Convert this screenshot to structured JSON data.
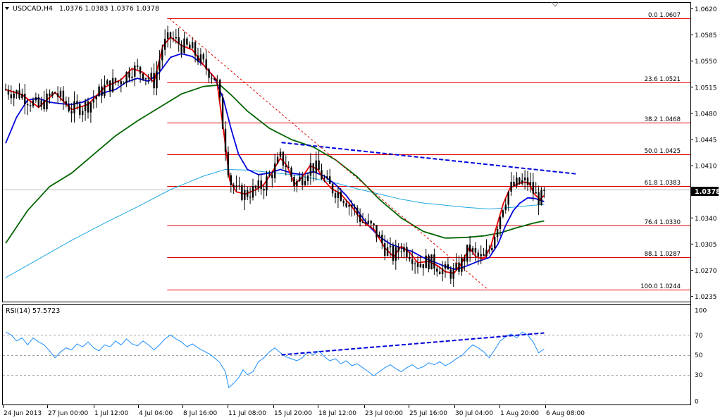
{
  "header": {
    "symbol": "USDCAD,H4",
    "ohlc": "1.0376 1.0383 1.0376 1.0378",
    "rsi_label": "RSI(14) 57.5723"
  },
  "price": {
    "current": "1.0378",
    "axis_ticks": [
      "1.0620",
      "1.0585",
      "1.0550",
      "1.0515",
      "1.0480",
      "1.0445",
      "1.0410",
      "1.0375",
      "1.0340",
      "1.0305",
      "1.0270",
      "1.0235"
    ]
  },
  "rsi_axis_ticks": [
    "100",
    "70",
    "50",
    "30",
    "0"
  ],
  "time_axis": [
    "24 Jun 2013",
    "27 Jun 00:00",
    "1 Jul 12:00",
    "4 Jul 04:00",
    "8 Jul 16:00",
    "11 Jul 08:00",
    "15 Jul 20:00",
    "18 Jul 12:00",
    "23 Jul 00:00",
    "25 Jul 16:00",
    "30 Jul 04:00",
    "1 Aug 20:00",
    "6 Aug 08:00"
  ],
  "colors": {
    "candle": "#000000",
    "ema_fast": "#ee0000",
    "ema_mid": "#0000dd",
    "ema_slow": "#006400",
    "ema_long": "#1ea7e0",
    "fib": "#e00000",
    "trendline": "#0000dd",
    "rsi": "#1e90ff"
  },
  "chart_data": [
    {
      "type": "candlestick",
      "symbol": "USDCAD",
      "timeframe": "H4",
      "ylim": [
        1.0228,
        1.0628
      ],
      "fibonacci": {
        "high": 1.0607,
        "low": 1.0244,
        "levels": [
          {
            "label": "0.0",
            "value": "1.0607"
          },
          {
            "label": "23.6",
            "value": "1.0521"
          },
          {
            "label": "38.2",
            "value": "1.0468"
          },
          {
            "label": "50.0",
            "value": "1.0425"
          },
          {
            "label": "61.8",
            "value": "1.0383"
          },
          {
            "label": "76.4",
            "value": "1.0330"
          },
          {
            "label": "88.1",
            "value": "1.0287"
          },
          {
            "label": "100.0",
            "value": "1.0244"
          }
        ]
      },
      "moving_averages": [
        {
          "color": "ema_fast",
          "points": [
            [
              0.0,
              1.0512
            ],
            [
              1.5,
              1.0505
            ],
            [
              3.0,
              1.0488
            ],
            [
              4.5,
              1.0508
            ],
            [
              6.0,
              1.0485
            ],
            [
              7.5,
              1.0492
            ],
            [
              9.0,
              1.0515
            ],
            [
              10.5,
              1.0525
            ],
            [
              11.5,
              1.054
            ],
            [
              12.5,
              1.0535
            ],
            [
              13.5,
              1.0522
            ],
            [
              14.3,
              1.057
            ],
            [
              15.0,
              1.0582
            ],
            [
              16.0,
              1.0571
            ],
            [
              17.0,
              1.0565
            ],
            [
              18.0,
              1.0545
            ],
            [
              19.2,
              1.0525
            ],
            [
              19.8,
              1.046
            ],
            [
              20.4,
              1.039
            ],
            [
              21.0,
              1.0375
            ],
            [
              21.8,
              1.0372
            ],
            [
              22.8,
              1.0378
            ],
            [
              23.5,
              1.0385
            ],
            [
              24.2,
              1.04
            ],
            [
              25.0,
              1.042
            ],
            [
              25.6,
              1.041
            ],
            [
              26.3,
              1.0385
            ],
            [
              27.0,
              1.0395
            ],
            [
              27.7,
              1.041
            ],
            [
              28.4,
              1.0405
            ],
            [
              29.0,
              1.039
            ],
            [
              29.6,
              1.038
            ],
            [
              30.5,
              1.0372
            ],
            [
              31.5,
              1.0355
            ],
            [
              32.5,
              1.0335
            ],
            [
              33.5,
              1.0325
            ],
            [
              34.5,
              1.03
            ],
            [
              35.3,
              1.0288
            ],
            [
              36.0,
              1.0302
            ],
            [
              36.8,
              1.0293
            ],
            [
              37.5,
              1.028
            ],
            [
              38.5,
              1.0282
            ],
            [
              39.3,
              1.0276
            ],
            [
              40.0,
              1.0268
            ],
            [
              40.8,
              1.0266
            ],
            [
              41.5,
              1.028
            ],
            [
              42.2,
              1.03
            ],
            [
              42.8,
              1.0288
            ],
            [
              43.5,
              1.0285
            ],
            [
              44.1,
              1.03
            ],
            [
              44.7,
              1.033
            ],
            [
              45.3,
              1.036
            ],
            [
              45.9,
              1.038
            ],
            [
              46.5,
              1.0385
            ],
            [
              47.1,
              1.0388
            ],
            [
              47.6,
              1.0387
            ],
            [
              48.1,
              1.0372
            ],
            [
              48.6,
              1.0365
            ],
            [
              49.0,
              1.037
            ]
          ]
        },
        {
          "color": "ema_mid",
          "points": [
            [
              0.0,
              1.044
            ],
            [
              1.0,
              1.0475
            ],
            [
              2.0,
              1.0498
            ],
            [
              3.0,
              1.05
            ],
            [
              4.0,
              1.0495
            ],
            [
              5.0,
              1.0493
            ],
            [
              6.0,
              1.0492
            ],
            [
              7.0,
              1.0495
            ],
            [
              8.0,
              1.0502
            ],
            [
              9.0,
              1.0508
            ],
            [
              10.0,
              1.0512
            ],
            [
              11.0,
              1.0522
            ],
            [
              12.0,
              1.0527
            ],
            [
              13.0,
              1.0523
            ],
            [
              14.0,
              1.0535
            ],
            [
              15.0,
              1.0555
            ],
            [
              16.0,
              1.056
            ],
            [
              17.0,
              1.0556
            ],
            [
              18.0,
              1.0545
            ],
            [
              19.0,
              1.0528
            ],
            [
              19.8,
              1.05
            ],
            [
              20.5,
              1.046
            ],
            [
              21.2,
              1.0425
            ],
            [
              22.0,
              1.0405
            ],
            [
              23.0,
              1.0398
            ],
            [
              24.0,
              1.04
            ],
            [
              25.0,
              1.0405
            ],
            [
              26.0,
              1.04
            ],
            [
              27.0,
              1.0398
            ],
            [
              28.0,
              1.0402
            ],
            [
              29.0,
              1.0396
            ],
            [
              30.0,
              1.0385
            ],
            [
              31.0,
              1.037
            ],
            [
              32.0,
              1.035
            ],
            [
              33.0,
              1.033
            ],
            [
              34.0,
              1.0315
            ],
            [
              35.0,
              1.0305
            ],
            [
              36.0,
              1.03
            ],
            [
              37.0,
              1.0295
            ],
            [
              38.0,
              1.0287
            ],
            [
              39.0,
              1.0281
            ],
            [
              40.0,
              1.0275
            ],
            [
              41.0,
              1.0271
            ],
            [
              42.0,
              1.0276
            ],
            [
              43.0,
              1.0282
            ],
            [
              44.0,
              1.0287
            ],
            [
              44.8,
              1.0305
            ],
            [
              45.5,
              1.033
            ],
            [
              46.2,
              1.035
            ],
            [
              46.8,
              1.036
            ],
            [
              47.5,
              1.0367
            ],
            [
              48.2,
              1.0366
            ],
            [
              49.0,
              1.0362
            ]
          ]
        },
        {
          "color": "ema_slow",
          "points": [
            [
              0.0,
              1.0306
            ],
            [
              2.0,
              1.035
            ],
            [
              4.0,
              1.0382
            ],
            [
              6.0,
              1.04
            ],
            [
              8.0,
              1.0425
            ],
            [
              10.0,
              1.045
            ],
            [
              12.0,
              1.047
            ],
            [
              14.0,
              1.0488
            ],
            [
              16.0,
              1.0506
            ],
            [
              18.0,
              1.0516
            ],
            [
              19.5,
              1.0518
            ],
            [
              20.5,
              1.0505
            ],
            [
              22.0,
              1.0483
            ],
            [
              24.0,
              1.046
            ],
            [
              26.0,
              1.0445
            ],
            [
              28.0,
              1.0435
            ],
            [
              30.0,
              1.0418
            ],
            [
              32.0,
              1.0395
            ],
            [
              34.0,
              1.0365
            ],
            [
              36.0,
              1.034
            ],
            [
              38.0,
              1.0322
            ],
            [
              40.0,
              1.0313
            ],
            [
              42.0,
              1.0314
            ],
            [
              43.5,
              1.0316
            ],
            [
              45.0,
              1.032
            ],
            [
              46.5,
              1.0327
            ],
            [
              48.0,
              1.0333
            ],
            [
              49.0,
              1.0336
            ]
          ]
        },
        {
          "color": "ema_long",
          "points": [
            [
              0.0,
              1.026
            ],
            [
              3.0,
              1.0285
            ],
            [
              6.0,
              1.031
            ],
            [
              9.0,
              1.0333
            ],
            [
              12.0,
              1.0355
            ],
            [
              15.0,
              1.0378
            ],
            [
              18.0,
              1.0396
            ],
            [
              20.0,
              1.0405
            ],
            [
              22.0,
              1.0404
            ],
            [
              24.0,
              1.0401
            ],
            [
              26.0,
              1.0398
            ],
            [
              28.0,
              1.0393
            ],
            [
              30.0,
              1.0387
            ],
            [
              32.0,
              1.0379
            ],
            [
              34.0,
              1.0372
            ],
            [
              36.0,
              1.0365
            ],
            [
              38.0,
              1.036
            ],
            [
              40.0,
              1.0357
            ],
            [
              42.0,
              1.0354
            ],
            [
              44.0,
              1.0352
            ],
            [
              46.0,
              1.0354
            ],
            [
              48.0,
              1.0357
            ],
            [
              49.0,
              1.0358
            ]
          ]
        }
      ],
      "trendlines": [
        {
          "style": "dashed",
          "color": "trendline",
          "points": [
            [
              25.1,
              1.0441
            ],
            [
              51.9,
              1.0399
            ]
          ]
        },
        {
          "style": "dotted",
          "color": "fib",
          "points": [
            [
              14.9,
              1.0607
            ],
            [
              43.9,
              1.0244
            ]
          ]
        }
      ]
    },
    {
      "type": "line",
      "title": "RSI(14)",
      "ylim": [
        0,
        100
      ],
      "levels": [
        70,
        50,
        30
      ],
      "values": [
        [
          0.0,
          73
        ],
        [
          0.5,
          70
        ],
        [
          1.0,
          64
        ],
        [
          1.5,
          67
        ],
        [
          2.0,
          60
        ],
        [
          2.5,
          67
        ],
        [
          3.0,
          63
        ],
        [
          3.5,
          60
        ],
        [
          4.0,
          54
        ],
        [
          4.5,
          47
        ],
        [
          5.0,
          53
        ],
        [
          5.5,
          57
        ],
        [
          6.0,
          55
        ],
        [
          6.5,
          61
        ],
        [
          7.0,
          58
        ],
        [
          7.5,
          63
        ],
        [
          8.0,
          57
        ],
        [
          8.5,
          54
        ],
        [
          9.0,
          60
        ],
        [
          9.5,
          58
        ],
        [
          10.0,
          64
        ],
        [
          10.5,
          60
        ],
        [
          11.0,
          66
        ],
        [
          11.5,
          61
        ],
        [
          12.0,
          59
        ],
        [
          12.5,
          64
        ],
        [
          13.0,
          60
        ],
        [
          13.5,
          55
        ],
        [
          14.0,
          60
        ],
        [
          14.5,
          66
        ],
        [
          15.0,
          70
        ],
        [
          15.5,
          66
        ],
        [
          16.0,
          63
        ],
        [
          16.5,
          58
        ],
        [
          17.0,
          61
        ],
        [
          17.5,
          57
        ],
        [
          18.0,
          54
        ],
        [
          18.5,
          51
        ],
        [
          19.0,
          47
        ],
        [
          19.5,
          42
        ],
        [
          20.0,
          33
        ],
        [
          20.3,
          17
        ],
        [
          20.8,
          22
        ],
        [
          21.2,
          27
        ],
        [
          21.6,
          35
        ],
        [
          22.0,
          30
        ],
        [
          22.5,
          33
        ],
        [
          23.0,
          43
        ],
        [
          23.5,
          47
        ],
        [
          24.0,
          53
        ],
        [
          24.5,
          57
        ],
        [
          25.0,
          52
        ],
        [
          25.5,
          48
        ],
        [
          26.0,
          46
        ],
        [
          26.5,
          44
        ],
        [
          27.0,
          47
        ],
        [
          27.5,
          53
        ],
        [
          28.0,
          50
        ],
        [
          28.5,
          54
        ],
        [
          29.0,
          48
        ],
        [
          29.5,
          44
        ],
        [
          30.0,
          46
        ],
        [
          30.5,
          41
        ],
        [
          31.0,
          44
        ],
        [
          31.5,
          39
        ],
        [
          32.0,
          41
        ],
        [
          32.5,
          37
        ],
        [
          33.0,
          33
        ],
        [
          33.5,
          29
        ],
        [
          34.0,
          33
        ],
        [
          34.5,
          37
        ],
        [
          35.0,
          40
        ],
        [
          35.5,
          36
        ],
        [
          36.0,
          33
        ],
        [
          36.5,
          37
        ],
        [
          37.0,
          40
        ],
        [
          37.5,
          36
        ],
        [
          38.0,
          38
        ],
        [
          38.5,
          42
        ],
        [
          39.0,
          40
        ],
        [
          39.5,
          43
        ],
        [
          40.0,
          39
        ],
        [
          40.5,
          42
        ],
        [
          41.0,
          46
        ],
        [
          41.5,
          49
        ],
        [
          42.0,
          55
        ],
        [
          42.5,
          60
        ],
        [
          43.0,
          57
        ],
        [
          43.5,
          53
        ],
        [
          44.0,
          47
        ],
        [
          44.5,
          55
        ],
        [
          45.0,
          64
        ],
        [
          45.5,
          68
        ],
        [
          46.0,
          71
        ],
        [
          46.5,
          67
        ],
        [
          47.0,
          73
        ],
        [
          47.5,
          70
        ],
        [
          48.0,
          63
        ],
        [
          48.5,
          52
        ],
        [
          49.0,
          56
        ]
      ],
      "trendlines": [
        {
          "style": "dashed",
          "color": "trendline",
          "points": [
            [
              25.1,
              50
            ],
            [
              49.0,
              72
            ]
          ]
        }
      ]
    }
  ]
}
